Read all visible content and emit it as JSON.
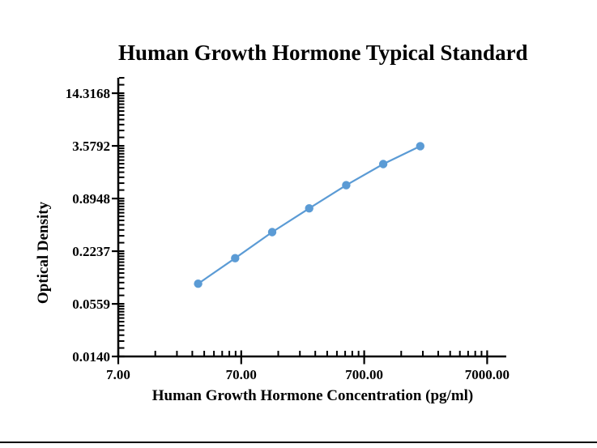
{
  "page": {
    "bottom_rule_color": "#000000",
    "background_color": "#ffffff",
    "text_color": "#000000"
  },
  "chart_data": {
    "type": "line",
    "title": "Human Growth Hormone Typical Standard",
    "xlabel": "Human Growth Hormone Concentration (pg/ml)",
    "ylabel": "Optical Density",
    "x_scale": "log",
    "y_scale": "log",
    "grid": false,
    "legend": "none",
    "xlim": [
      7,
      10000
    ],
    "ylim": [
      0.014,
      21.5
    ],
    "x_ticks": {
      "values": [
        7,
        70,
        700,
        7000
      ],
      "labels": [
        "7.00",
        "70.00",
        "700.00",
        "7000.00"
      ]
    },
    "y_ticks": {
      "values": [
        0.014,
        0.0559,
        0.2237,
        0.8948,
        3.5792,
        14.3168
      ],
      "labels": [
        "0.0140",
        "0.0559",
        "0.2237",
        "0.8948",
        "3.5792",
        "14.3168"
      ]
    },
    "series": [
      {
        "color": "#5B9BD5",
        "marker": "circle",
        "x": [
          31.25,
          62.5,
          125,
          250,
          500,
          1000,
          2000
        ],
        "y": [
          0.095,
          0.186,
          0.37,
          0.69,
          1.27,
          2.22,
          3.55
        ]
      }
    ]
  }
}
